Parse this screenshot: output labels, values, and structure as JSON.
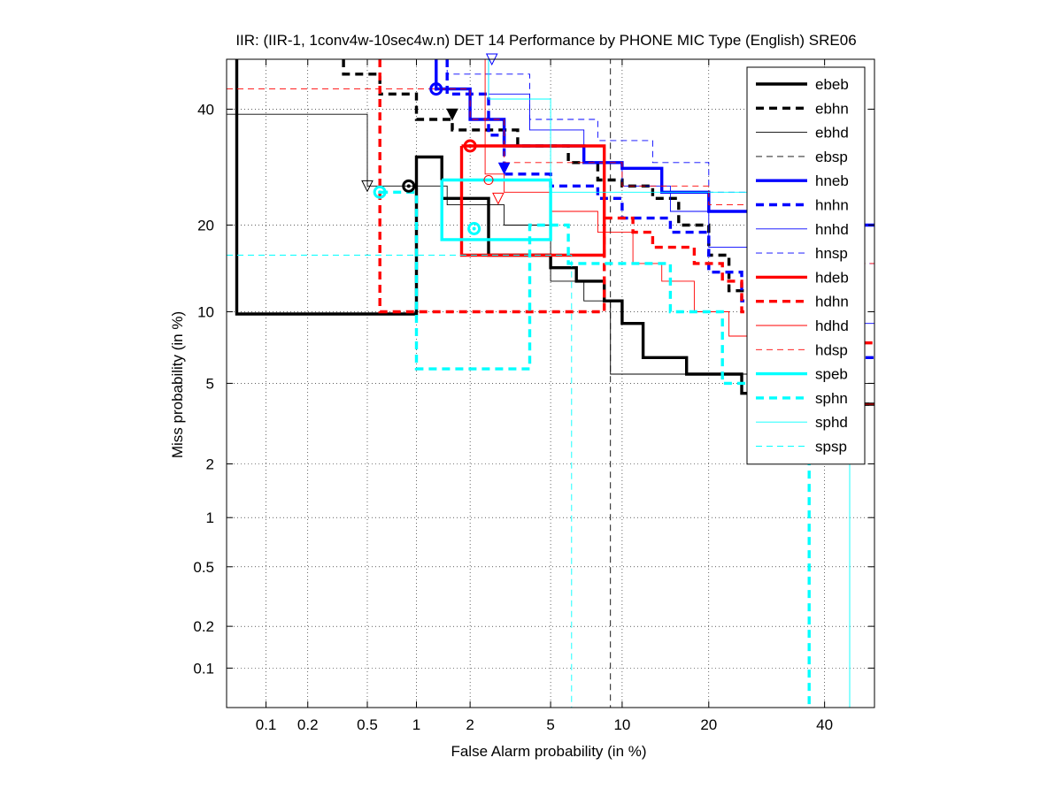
{
  "chart_data": {
    "type": "line",
    "title": "IIR: (IIR-1, 1conv4w-10sec4w.n) DET 14 Performance by PHONE MIC Type (English) SRE06",
    "xlabel": "False Alarm probability (in %)",
    "ylabel": "Miss probability (in %)",
    "x_scale": "probit",
    "y_scale": "probit",
    "xlim": [
      0.05,
      50
    ],
    "ylim": [
      0.05,
      50
    ],
    "x_ticks": [
      0.1,
      0.2,
      0.5,
      1,
      2,
      5,
      10,
      20,
      40
    ],
    "y_ticks": [
      0.1,
      0.2,
      0.5,
      1,
      2,
      5,
      10,
      20,
      40
    ],
    "x_tick_labels": [
      "0.1",
      "0.2",
      "0.5",
      "1",
      "2",
      "5",
      "10",
      "20",
      "40"
    ],
    "y_tick_labels": [
      "0.1",
      "0.2",
      "0.5",
      "1",
      "2",
      "5",
      "10",
      "20",
      "40"
    ],
    "grid": true,
    "legend_position": "top-right",
    "series": [
      {
        "name": "ebeb",
        "color": "#000000",
        "style": "solid",
        "width": "thick",
        "points": [
          [
            0.06,
            50
          ],
          [
            0.06,
            9.8
          ],
          [
            1.0,
            9.8
          ],
          [
            1.0,
            31
          ],
          [
            1.4,
            31
          ],
          [
            1.4,
            24
          ],
          [
            2.5,
            24
          ],
          [
            2.5,
            16
          ],
          [
            5.0,
            16
          ],
          [
            5.0,
            14.5
          ],
          [
            6.5,
            14.5
          ],
          [
            6.5,
            13
          ],
          [
            8.5,
            13
          ],
          [
            8.5,
            11
          ],
          [
            10,
            11
          ],
          [
            10,
            9
          ],
          [
            12,
            9
          ],
          [
            12,
            6.5
          ],
          [
            17,
            6.5
          ],
          [
            17,
            5.5
          ],
          [
            25,
            5.5
          ],
          [
            25,
            4.5
          ],
          [
            35,
            4.5
          ],
          [
            35,
            4
          ],
          [
            50,
            4
          ]
        ],
        "marker": [
          0.9,
          26
        ],
        "marker_type": "circle"
      },
      {
        "name": "ebhn",
        "color": "#000000",
        "style": "dashed",
        "width": "thick",
        "points": [
          [
            0.35,
            50
          ],
          [
            0.35,
            47
          ],
          [
            0.6,
            47
          ],
          [
            0.6,
            43
          ],
          [
            1.0,
            43
          ],
          [
            1.0,
            38
          ],
          [
            1.6,
            38
          ],
          [
            1.6,
            36
          ],
          [
            3.5,
            36
          ],
          [
            3.5,
            33
          ],
          [
            6,
            33
          ],
          [
            6,
            30
          ],
          [
            8,
            30
          ],
          [
            8,
            27
          ],
          [
            10,
            27
          ],
          [
            10,
            26
          ],
          [
            13,
            26
          ],
          [
            13,
            24
          ],
          [
            16,
            24
          ],
          [
            16,
            20
          ],
          [
            20,
            20
          ],
          [
            20,
            16
          ],
          [
            23,
            16
          ],
          [
            23,
            12
          ],
          [
            28,
            12
          ],
          [
            28,
            8
          ],
          [
            35,
            8
          ],
          [
            35,
            6
          ],
          [
            40,
            6
          ],
          [
            40,
            4
          ],
          [
            50,
            4
          ]
        ],
        "marker": [
          1.6,
          39
        ],
        "marker_type": "triangle"
      },
      {
        "name": "ebhd",
        "color": "#000000",
        "style": "solid",
        "width": "thin",
        "points": [
          [
            0.05,
            39
          ],
          [
            0.5,
            39
          ],
          [
            0.5,
            26
          ],
          [
            1.5,
            26
          ],
          [
            1.5,
            23
          ],
          [
            3,
            23
          ],
          [
            3,
            20
          ],
          [
            5,
            20
          ],
          [
            5,
            13
          ],
          [
            7,
            13
          ],
          [
            7,
            11
          ],
          [
            9,
            11
          ],
          [
            9,
            5.5
          ],
          [
            28,
            5.5
          ],
          [
            28,
            5
          ],
          [
            50,
            5
          ]
        ],
        "marker": [
          0.5,
          26
        ],
        "marker_type": "triangle-open"
      },
      {
        "name": "ebsp",
        "color": "#000000",
        "style": "dashed",
        "width": "thin",
        "points": [
          [
            0.05,
            50
          ],
          [
            9,
            50
          ],
          [
            9,
            0.05
          ]
        ]
      },
      {
        "name": "hneb",
        "color": "#0000ff",
        "style": "solid",
        "width": "thick",
        "points": [
          [
            1.3,
            50
          ],
          [
            1.3,
            44
          ],
          [
            2.0,
            44
          ],
          [
            2.0,
            38
          ],
          [
            3.0,
            38
          ],
          [
            3.0,
            33
          ],
          [
            7,
            33
          ],
          [
            7,
            30
          ],
          [
            10,
            30
          ],
          [
            10,
            29
          ],
          [
            14,
            29
          ],
          [
            14,
            25
          ],
          [
            20,
            25
          ],
          [
            20,
            22
          ],
          [
            30,
            22
          ],
          [
            30,
            20
          ],
          [
            50,
            20
          ]
        ],
        "marker": [
          1.3,
          44
        ],
        "marker_type": "circle"
      },
      {
        "name": "hnhn",
        "color": "#0000ff",
        "style": "dashed",
        "width": "thick",
        "points": [
          [
            1.5,
            50
          ],
          [
            1.5,
            43
          ],
          [
            2.5,
            43
          ],
          [
            2.5,
            35
          ],
          [
            3,
            35
          ],
          [
            3,
            28
          ],
          [
            5,
            28
          ],
          [
            5,
            26
          ],
          [
            8,
            26
          ],
          [
            8,
            24
          ],
          [
            10,
            24
          ],
          [
            10,
            21
          ],
          [
            15,
            21
          ],
          [
            15,
            19
          ],
          [
            20,
            19
          ],
          [
            20,
            14
          ],
          [
            25,
            14
          ],
          [
            25,
            11
          ],
          [
            30,
            11
          ],
          [
            30,
            8
          ],
          [
            40,
            8
          ],
          [
            40,
            6.5
          ],
          [
            50,
            6.5
          ]
        ],
        "marker": [
          3.0,
          29
        ],
        "marker_type": "triangle"
      },
      {
        "name": "hnhd",
        "color": "#0000ff",
        "style": "solid",
        "width": "thin",
        "points": [
          [
            2.5,
            50
          ],
          [
            2.5,
            43
          ],
          [
            4,
            43
          ],
          [
            4,
            36
          ],
          [
            7,
            36
          ],
          [
            7,
            30
          ],
          [
            10,
            30
          ],
          [
            10,
            26
          ],
          [
            15,
            26
          ],
          [
            15,
            22
          ],
          [
            20,
            22
          ],
          [
            20,
            17
          ],
          [
            30,
            17
          ],
          [
            30,
            12
          ],
          [
            40,
            12
          ],
          [
            40,
            9
          ],
          [
            50,
            9
          ]
        ],
        "marker": [
          2.6,
          50
        ],
        "marker_type": "triangle-open"
      },
      {
        "name": "hnsp",
        "color": "#0000ff",
        "style": "dashed",
        "width": "thin",
        "points": [
          [
            1.5,
            50
          ],
          [
            1.5,
            47
          ],
          [
            4,
            47
          ],
          [
            4,
            38
          ],
          [
            8,
            38
          ],
          [
            8,
            34
          ],
          [
            13,
            34
          ],
          [
            13,
            30
          ],
          [
            20,
            30
          ],
          [
            20,
            25
          ],
          [
            30,
            25
          ],
          [
            30,
            19
          ],
          [
            40,
            19
          ],
          [
            40,
            15
          ],
          [
            50,
            15
          ]
        ]
      },
      {
        "name": "hdeb",
        "color": "#ff0000",
        "style": "solid",
        "width": "thick",
        "points": [
          [
            1.8,
            33
          ],
          [
            8.5,
            33
          ],
          [
            8.5,
            16
          ],
          [
            1.8,
            16
          ],
          [
            1.8,
            33
          ]
        ],
        "marker": [
          2.0,
          33
        ],
        "marker_type": "circle"
      },
      {
        "name": "hdhn",
        "color": "#ff0000",
        "style": "dashed",
        "width": "thick",
        "points": [
          [
            0.6,
            50
          ],
          [
            0.6,
            10
          ],
          [
            8.5,
            10
          ],
          [
            8.5,
            21
          ],
          [
            11,
            21
          ],
          [
            11,
            19
          ],
          [
            13,
            19
          ],
          [
            13,
            17
          ],
          [
            18,
            17
          ],
          [
            18,
            15
          ],
          [
            22,
            15
          ],
          [
            22,
            13
          ],
          [
            25,
            13
          ],
          [
            25,
            10
          ],
          [
            30,
            10
          ],
          [
            30,
            7.5
          ],
          [
            50,
            7.5
          ]
        ],
        "marker": [
          2.8,
          24
        ],
        "marker_type": "triangle-open"
      },
      {
        "name": "hdhd",
        "color": "#ff0000",
        "style": "solid",
        "width": "thin",
        "points": [
          [
            2.4,
            50
          ],
          [
            2.4,
            28
          ],
          [
            3,
            28
          ],
          [
            3,
            25
          ],
          [
            5,
            25
          ],
          [
            5,
            22
          ],
          [
            8,
            22
          ],
          [
            8,
            19
          ],
          [
            11,
            19
          ],
          [
            11,
            15
          ],
          [
            14,
            15
          ],
          [
            14,
            13
          ],
          [
            18,
            13
          ],
          [
            18,
            10
          ],
          [
            23,
            10
          ],
          [
            23,
            8
          ],
          [
            30,
            8
          ],
          [
            30,
            6
          ],
          [
            40,
            6
          ],
          [
            40,
            4
          ],
          [
            50,
            4
          ]
        ],
        "marker": [
          2.5,
          27
        ],
        "marker_type": "circle-open"
      },
      {
        "name": "hdsp",
        "color": "#ff0000",
        "style": "dashed",
        "width": "thin",
        "points": [
          [
            0.05,
            44
          ],
          [
            2,
            44
          ],
          [
            2,
            38
          ],
          [
            3,
            38
          ],
          [
            3,
            30
          ],
          [
            10,
            30
          ],
          [
            10,
            26
          ],
          [
            20,
            26
          ],
          [
            20,
            23
          ],
          [
            30,
            23
          ],
          [
            30,
            20
          ],
          [
            40,
            20
          ],
          [
            40,
            15
          ],
          [
            50,
            15
          ]
        ]
      },
      {
        "name": "speb",
        "color": "#00ffff",
        "style": "solid",
        "width": "thick",
        "points": [
          [
            1.4,
            27
          ],
          [
            5.0,
            27
          ],
          [
            5.0,
            18
          ],
          [
            1.4,
            18
          ],
          [
            1.4,
            27
          ]
        ],
        "marker": [
          2.1,
          19.5
        ],
        "marker_type": "circle"
      },
      {
        "name": "sphn",
        "color": "#00ffff",
        "style": "dashed",
        "width": "thick",
        "points": [
          [
            0.6,
            25
          ],
          [
            1.0,
            25
          ],
          [
            1.0,
            5.8
          ],
          [
            4.0,
            5.8
          ],
          [
            4.0,
            20
          ],
          [
            6,
            20
          ],
          [
            6,
            15
          ],
          [
            15,
            15
          ],
          [
            15,
            10
          ],
          [
            22,
            10
          ],
          [
            22,
            5
          ],
          [
            30,
            5
          ],
          [
            30,
            4
          ],
          [
            37,
            4
          ],
          [
            37,
            0.05
          ]
        ],
        "marker": [
          0.6,
          25
        ],
        "marker_type": "circle"
      },
      {
        "name": "sphd",
        "color": "#00ffff",
        "style": "solid",
        "width": "thin",
        "points": [
          [
            0.05,
            50
          ],
          [
            2.5,
            50
          ],
          [
            2.5,
            42
          ],
          [
            5,
            42
          ],
          [
            5,
            25
          ],
          [
            30,
            25
          ],
          [
            30,
            20
          ],
          [
            45,
            20
          ],
          [
            45,
            0.05
          ]
        ]
      },
      {
        "name": "spsp",
        "color": "#00ffff",
        "style": "dashed",
        "width": "thin",
        "points": [
          [
            0.05,
            16
          ],
          [
            6.2,
            16
          ],
          [
            6.2,
            0.05
          ]
        ]
      }
    ]
  }
}
